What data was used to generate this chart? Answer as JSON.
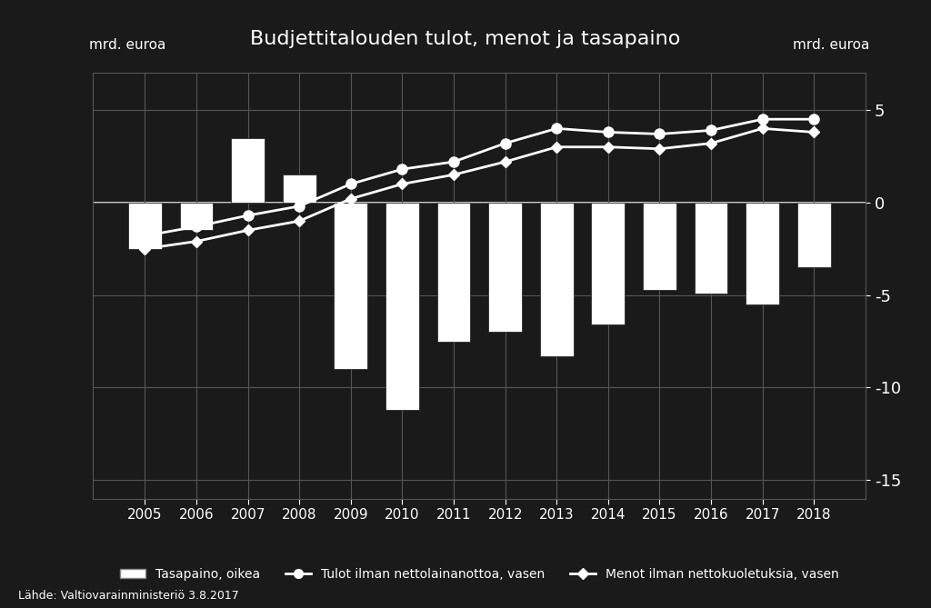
{
  "title": "Budjettitalouden tulot, menot ja tasapaino",
  "ylabel_left": "mrd. euroa",
  "ylabel_right": "mrd. euroa",
  "source": "Lähde: Valtiovarainministeriö 3.8.2017",
  "years": [
    2005,
    2006,
    2007,
    2008,
    2009,
    2010,
    2011,
    2012,
    2013,
    2014,
    2015,
    2016,
    2017,
    2018
  ],
  "tasapaino": [
    -2.5,
    -1.5,
    3.5,
    1.5,
    -9.0,
    -11.2,
    -7.5,
    -7.0,
    -8.3,
    -6.6,
    -4.7,
    -4.9,
    -5.5,
    -3.5
  ],
  "tulot": [
    -1.8,
    -1.3,
    -0.7,
    -0.2,
    1.0,
    1.8,
    2.2,
    3.2,
    4.0,
    3.8,
    3.7,
    3.9,
    4.5,
    4.5
  ],
  "menot": [
    -2.5,
    -2.1,
    -1.5,
    -1.0,
    0.2,
    1.0,
    1.5,
    2.2,
    3.0,
    3.0,
    2.9,
    3.2,
    4.0,
    3.8
  ],
  "background_color": "#1a1a1a",
  "bar_color": "#ffffff",
  "bar_edge_color": "#1a1a1a",
  "line1_color": "#ffffff",
  "line2_color": "#ffffff",
  "grid_color": "#555555",
  "text_color": "#ffffff",
  "legend_labels": [
    "Tasapaino, oikea",
    "Tulot ilman nettolainanottoa, vasen",
    "Menot ilman nettokuoletuksia, vasen"
  ],
  "ylim": [
    -16,
    7
  ],
  "yticks": [
    -15,
    -10,
    -5,
    0,
    5
  ],
  "bar_width": 0.65
}
